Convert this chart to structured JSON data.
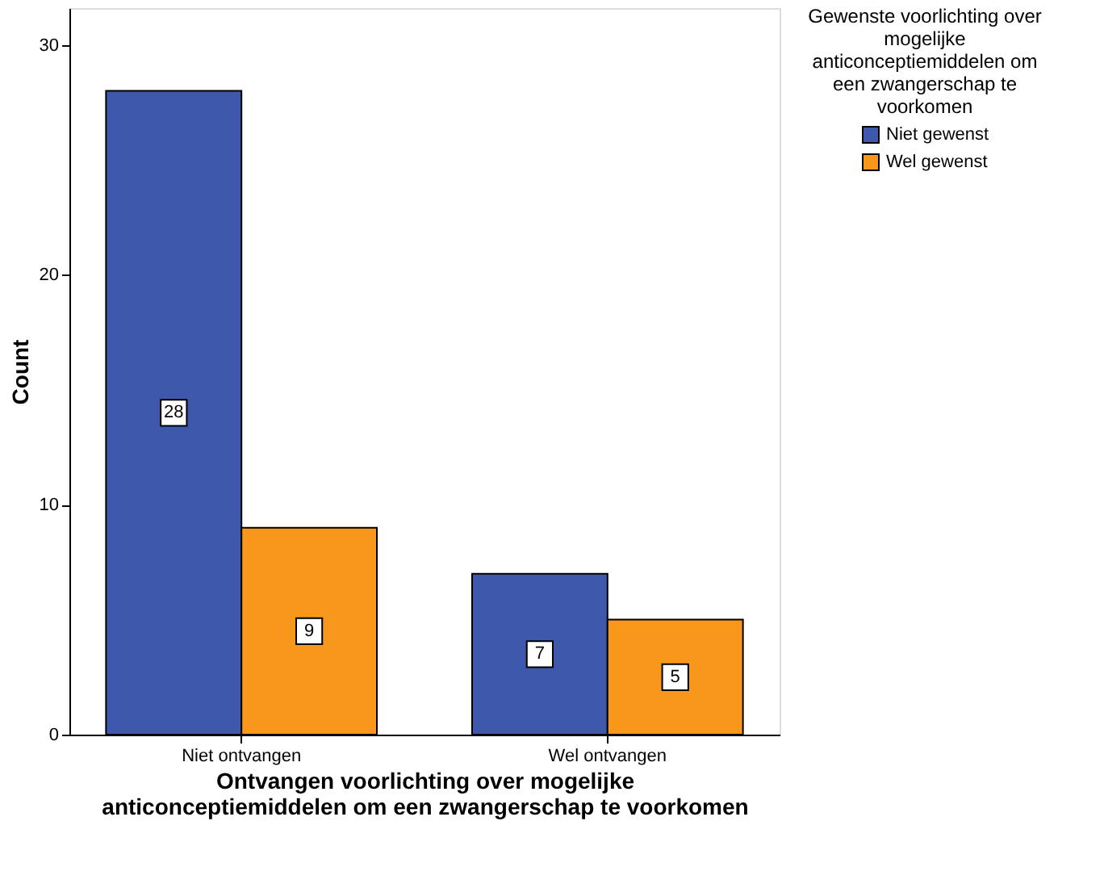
{
  "chart_data": {
    "type": "bar",
    "xlabel": "Ontvangen voorlichting over mogelijke anticonceptiemiddelen om een zwangerschap te voorkomen",
    "ylabel": "Count",
    "legend_title": "Gewenste voorlichting over mogelijke anticonceptiemiddelen om een zwangerschap te voorkomen",
    "categories": [
      "Niet ontvangen",
      "Wel ontvangen"
    ],
    "series": [
      {
        "name": "Niet gewenst",
        "color": "#3e58ac",
        "values": [
          28,
          7
        ]
      },
      {
        "name": "Wel gewenst",
        "color": "#f7981c",
        "values": [
          9,
          5
        ]
      }
    ],
    "ylim": [
      0,
      31.6
    ],
    "yticks": [
      0,
      10,
      20,
      30
    ],
    "data_labels": true,
    "grid": false,
    "legend": "top right"
  }
}
